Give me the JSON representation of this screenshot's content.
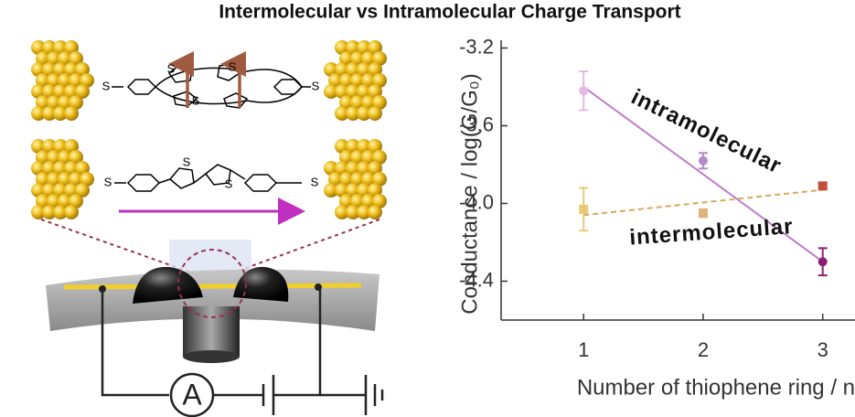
{
  "chart_data": {
    "type": "line",
    "title": "Intermolecular vs Intramolecular Charge Transport",
    "xlabel": "Number of thiophene ring / n",
    "ylabel": "Conductance / log(G/G₀)",
    "x": [
      1,
      2,
      3
    ],
    "xlim": [
      0.31,
      3.27
    ],
    "xticks": [
      1,
      2,
      3
    ],
    "ylim": [
      -4.6,
      -3.16
    ],
    "yticks": [
      -3.2,
      -3.6,
      {
        "value": -4,
        "label": "-4.0"
      },
      -4.4
    ],
    "series": [
      {
        "name": "intramolecular",
        "color": "#c07cc8",
        "dash": false,
        "point_colors": [
          "#e6b8e6",
          "#b58ac8",
          "#8a1f78"
        ],
        "values": [
          -3.42,
          -3.78,
          -4.3
        ],
        "errors": [
          0.1,
          0.04,
          0.07
        ],
        "fit": [
          -3.4,
          -4.3
        ]
      },
      {
        "name": "intermolecular",
        "color": "#d9a85a",
        "dash": true,
        "point_colors": [
          "#eac873",
          "#e0b37a",
          "#c0503a"
        ],
        "values": [
          -4.03,
          -4.05,
          -3.91
        ],
        "errors": [
          0.11,
          0.02,
          0.015
        ],
        "fit": [
          -4.06,
          -3.93
        ]
      }
    ]
  },
  "schematic": {
    "atom_label": "S",
    "meter_label": "A"
  }
}
